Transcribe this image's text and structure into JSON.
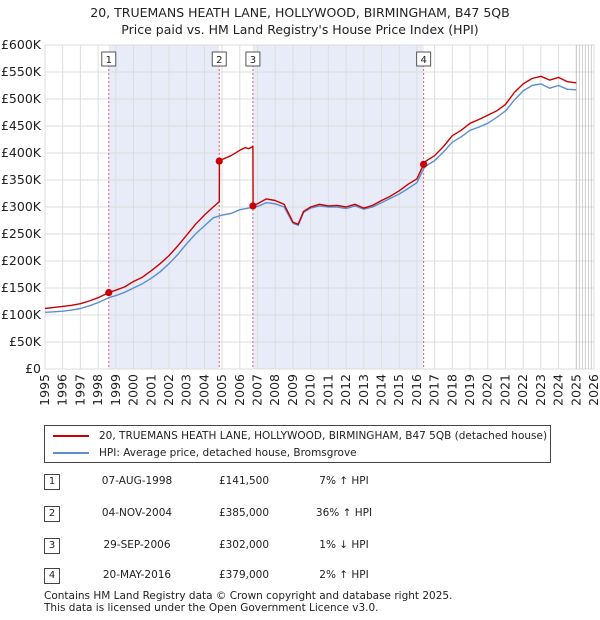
{
  "title_line1": "20, TRUEMANS HEATH LANE, HOLLYWOOD, BIRMINGHAM, B47 5QB",
  "title_line2": "Price paid vs. HM Land Registry's House Price Index (HPI)",
  "chart_data": {
    "type": "line",
    "y_ticks": [
      "£0",
      "£50K",
      "£100K",
      "£150K",
      "£200K",
      "£250K",
      "£300K",
      "£350K",
      "£400K",
      "£450K",
      "£500K",
      "£550K",
      "£600K"
    ],
    "x_ticks": [
      "1995",
      "1996",
      "1997",
      "1998",
      "1999",
      "2000",
      "2001",
      "2002",
      "2003",
      "2004",
      "2005",
      "2006",
      "2007",
      "2008",
      "2009",
      "2010",
      "2011",
      "2012",
      "2013",
      "2014",
      "2015",
      "2016",
      "2017",
      "2018",
      "2019",
      "2020",
      "2021",
      "2022",
      "2023",
      "2024",
      "2025",
      "2026"
    ],
    "xlim": [
      1995,
      2026
    ],
    "ylim": [
      0,
      600000
    ],
    "series": [
      {
        "name": "20, TRUEMANS HEATH LANE, HOLLYWOOD, BIRMINGHAM, B47 5QB (detached house)",
        "color": "#cc0000",
        "x": [
          1995.0,
          1995.5,
          1996.0,
          1996.5,
          1997.0,
          1997.5,
          1998.0,
          1998.6,
          1999.0,
          1999.5,
          2000.0,
          2000.5,
          2001.0,
          2001.5,
          2002.0,
          2002.5,
          2003.0,
          2003.5,
          2004.0,
          2004.5,
          2004.84,
          2004.85,
          2005.0,
          2005.5,
          2006.0,
          2006.3,
          2006.5,
          2006.74,
          2006.75,
          2007.0,
          2007.5,
          2008.0,
          2008.5,
          2009.0,
          2009.3,
          2009.6,
          2010.0,
          2010.5,
          2011.0,
          2011.5,
          2012.0,
          2012.5,
          2013.0,
          2013.5,
          2014.0,
          2014.5,
          2015.0,
          2015.5,
          2016.0,
          2016.38,
          2016.5,
          2017.0,
          2017.5,
          2018.0,
          2018.5,
          2019.0,
          2019.5,
          2020.0,
          2020.5,
          2021.0,
          2021.5,
          2022.0,
          2022.5,
          2023.0,
          2023.5,
          2024.0,
          2024.5,
          2025.0
        ],
        "values": [
          112000,
          114000,
          116000,
          118000,
          121000,
          126000,
          132000,
          141500,
          146000,
          152000,
          162000,
          170000,
          182000,
          195000,
          210000,
          228000,
          248000,
          268000,
          285000,
          300000,
          310000,
          385000,
          388000,
          395000,
          405000,
          410000,
          408000,
          412000,
          302000,
          306000,
          315000,
          312000,
          305000,
          272000,
          268000,
          292000,
          300000,
          305000,
          302000,
          303000,
          300000,
          305000,
          298000,
          303000,
          312000,
          320000,
          330000,
          342000,
          352000,
          379000,
          385000,
          395000,
          412000,
          432000,
          442000,
          455000,
          462000,
          470000,
          478000,
          490000,
          512000,
          528000,
          538000,
          542000,
          535000,
          540000,
          532000,
          530000
        ]
      },
      {
        "name": "HPI: Average price, detached house, Bromsgrove",
        "color": "#5b8fd0",
        "x": [
          1995.0,
          1995.5,
          1996.0,
          1996.5,
          1997.0,
          1997.5,
          1998.0,
          1998.6,
          1999.0,
          1999.5,
          2000.0,
          2000.5,
          2001.0,
          2001.5,
          2002.0,
          2002.5,
          2003.0,
          2003.5,
          2004.0,
          2004.5,
          2005.0,
          2005.5,
          2006.0,
          2006.5,
          2007.0,
          2007.5,
          2008.0,
          2008.5,
          2009.0,
          2009.3,
          2009.6,
          2010.0,
          2010.5,
          2011.0,
          2011.5,
          2012.0,
          2012.5,
          2013.0,
          2013.5,
          2014.0,
          2014.5,
          2015.0,
          2015.5,
          2016.0,
          2016.38,
          2016.5,
          2017.0,
          2017.5,
          2018.0,
          2018.5,
          2019.0,
          2019.5,
          2020.0,
          2020.5,
          2021.0,
          2021.5,
          2022.0,
          2022.5,
          2023.0,
          2023.5,
          2024.0,
          2024.5,
          2025.0
        ],
        "values": [
          105000,
          106000,
          107000,
          109000,
          112000,
          117000,
          123000,
          132000,
          136000,
          142000,
          150000,
          158000,
          168000,
          180000,
          195000,
          212000,
          232000,
          250000,
          265000,
          280000,
          285000,
          288000,
          295000,
          298000,
          301000,
          308000,
          306000,
          300000,
          270000,
          266000,
          290000,
          298000,
          302000,
          300000,
          300000,
          297000,
          302000,
          296000,
          300000,
          308000,
          316000,
          324000,
          334000,
          345000,
          371000,
          376000,
          386000,
          402000,
          420000,
          430000,
          442000,
          448000,
          455000,
          466000,
          478000,
          498000,
          515000,
          525000,
          528000,
          520000,
          525000,
          518000,
          517000
        ]
      }
    ],
    "sales": [
      {
        "label": "1",
        "x": 1998.6,
        "value": 141500
      },
      {
        "label": "2",
        "x": 2004.84,
        "value": 385000
      },
      {
        "label": "3",
        "x": 2006.74,
        "value": 302000
      },
      {
        "label": "4",
        "x": 2016.38,
        "value": 379000
      }
    ],
    "shaded_ranges": [
      [
        1998.6,
        2004.84
      ],
      [
        2006.74,
        2016.38
      ]
    ],
    "projection_from": 2025.0
  },
  "legend": {
    "property_label": "20, TRUEMANS HEATH LANE, HOLLYWOOD, BIRMINGHAM, B47 5QB (detached house)",
    "hpi_label": "HPI: Average price, detached house, Bromsgrove",
    "property_color": "#cc0000",
    "hpi_color": "#5b8fd0"
  },
  "sales_table": [
    {
      "num": "1",
      "date": "07-AUG-1998",
      "price": "£141,500",
      "hpi": "7% ↑ HPI"
    },
    {
      "num": "2",
      "date": "04-NOV-2004",
      "price": "£385,000",
      "hpi": "36% ↑ HPI"
    },
    {
      "num": "3",
      "date": "29-SEP-2006",
      "price": "£302,000",
      "hpi": "1% ↓ HPI"
    },
    {
      "num": "4",
      "date": "20-MAY-2016",
      "price": "£379,000",
      "hpi": "2% ↑ HPI"
    }
  ],
  "footer_line1": "Contains HM Land Registry data © Crown copyright and database right 2025.",
  "footer_line2": "This data is licensed under the Open Government Licence v3.0."
}
